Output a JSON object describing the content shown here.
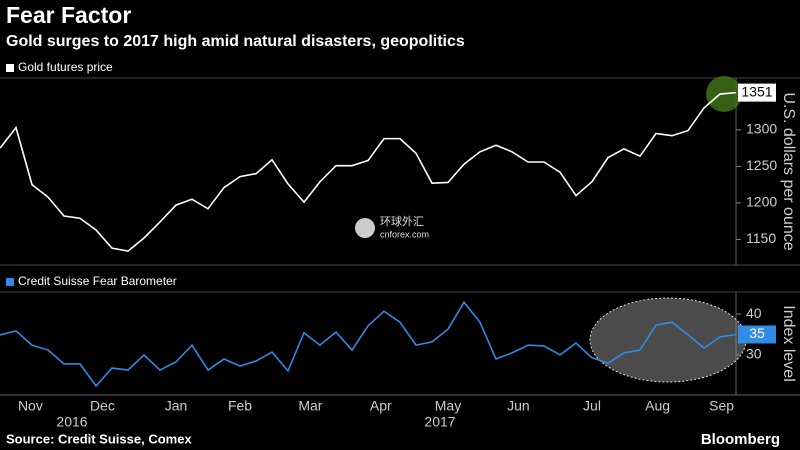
{
  "title": "Fear Factor",
  "subtitle": "Gold surges to 2017 high amid natural disasters, geopolitics",
  "source": "Source: Credit Suisse, Comex",
  "brand": "Bloomberg",
  "watermark": [
    "环球外汇",
    "cnforex.com"
  ],
  "xlim": [
    0,
    46
  ],
  "xticks": [
    {
      "value": 1.9,
      "label": "Nov"
    },
    {
      "value": 6.4,
      "label": "Dec"
    },
    {
      "value": 11,
      "label": "Jan"
    },
    {
      "value": 15,
      "label": "Feb"
    },
    {
      "value": 19.4,
      "label": "Mar"
    },
    {
      "value": 23.8,
      "label": "Apr"
    },
    {
      "value": 28,
      "label": "May"
    },
    {
      "value": 32.4,
      "label": "Jun"
    },
    {
      "value": 37,
      "label": "Jul"
    },
    {
      "value": 41.1,
      "label": "Aug"
    },
    {
      "value": 45.1,
      "label": "Sep"
    }
  ],
  "year_ticks": [
    {
      "value": 4.5,
      "label": "2016"
    },
    {
      "value": 27.5,
      "label": "2017"
    }
  ],
  "chart_data": [
    {
      "type": "line",
      "legend": "Gold futures price",
      "ylabel": "U.S. dollars per ounce",
      "color": "#ffffff",
      "values": [
        1275,
        1303,
        1225,
        1208,
        1182,
        1179,
        1163,
        1138,
        1134,
        1152,
        1174,
        1197,
        1205,
        1192,
        1221,
        1236,
        1240,
        1259,
        1226,
        1201,
        1229,
        1251,
        1251,
        1258,
        1288,
        1288,
        1268,
        1227,
        1228,
        1253,
        1270,
        1279,
        1270,
        1256,
        1256,
        1242,
        1210,
        1229,
        1262,
        1274,
        1264,
        1295,
        1292,
        1299,
        1330,
        1349,
        1351
      ],
      "ylim": [
        1115,
        1371
      ],
      "yticks": [
        1150,
        1200,
        1250,
        1300
      ]
    },
    {
      "type": "line",
      "legend": "Credit Suisse Fear Barometer",
      "ylabel": "Index level",
      "color": "#2f8be6",
      "values": [
        34.9,
        35.9,
        32.4,
        31.2,
        27.8,
        27.8,
        22.4,
        26.8,
        26.3,
        30,
        26.3,
        28.3,
        32.4,
        26.3,
        29,
        27.3,
        28.5,
        30.7,
        26.1,
        35.4,
        32.4,
        35.6,
        31.2,
        37.1,
        40.7,
        38,
        32.4,
        33.2,
        36.3,
        42.9,
        38,
        29,
        30.5,
        32.4,
        32.2,
        30,
        32.9,
        29.3,
        28,
        30.5,
        31.2,
        37.3,
        38,
        34.9,
        31.7,
        34.4,
        35
      ],
      "ylim": [
        20.2,
        45.4
      ],
      "yticks": [
        30,
        40
      ]
    }
  ]
}
